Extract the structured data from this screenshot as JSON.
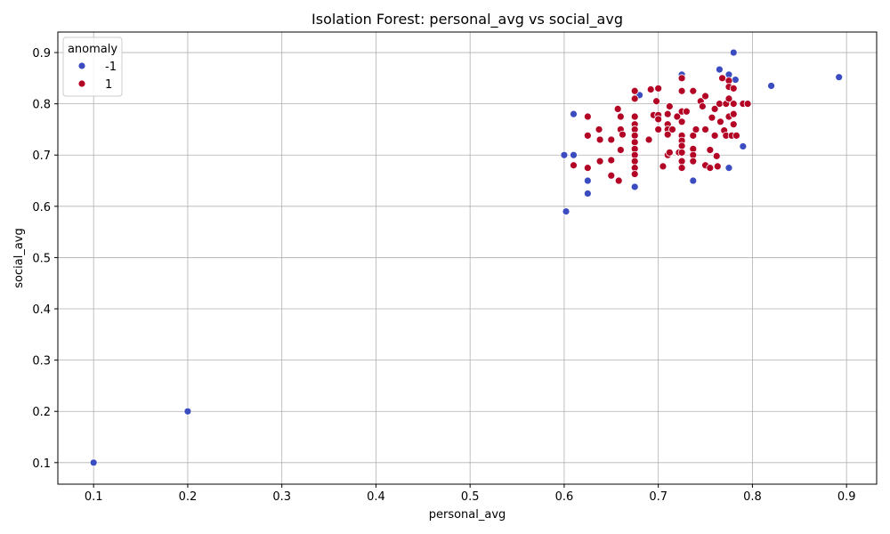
{
  "chart_data": {
    "type": "scatter",
    "title": "Isolation Forest: personal_avg vs social_avg",
    "xlabel": "personal_avg",
    "ylabel": "social_avg",
    "xlim": [
      0.062,
      0.932
    ],
    "ylim": [
      0.058,
      0.94
    ],
    "xticks": [
      "0.1",
      "0.2",
      "0.3",
      "0.4",
      "0.5",
      "0.6",
      "0.7",
      "0.8",
      "0.9"
    ],
    "yticks": [
      "0.1",
      "0.2",
      "0.3",
      "0.4",
      "0.5",
      "0.6",
      "0.7",
      "0.8",
      "0.9"
    ],
    "grid": true,
    "legend": {
      "title": "anomaly",
      "placement": "top-left",
      "entries": [
        "-1",
        "1"
      ]
    },
    "colors": {
      "-1": "#3b4cc0",
      "1": "#b40426"
    },
    "series": [
      {
        "name": "-1",
        "color": "#3b4cc0",
        "points": [
          [
            0.1,
            0.1
          ],
          [
            0.2,
            0.2
          ],
          [
            0.6,
            0.7
          ],
          [
            0.602,
            0.59
          ],
          [
            0.61,
            0.7
          ],
          [
            0.61,
            0.78
          ],
          [
            0.625,
            0.65
          ],
          [
            0.625,
            0.625
          ],
          [
            0.675,
            0.638
          ],
          [
            0.68,
            0.817
          ],
          [
            0.725,
            0.857
          ],
          [
            0.737,
            0.65
          ],
          [
            0.765,
            0.867
          ],
          [
            0.775,
            0.857
          ],
          [
            0.775,
            0.675
          ],
          [
            0.78,
            0.9
          ],
          [
            0.782,
            0.847
          ],
          [
            0.79,
            0.717
          ],
          [
            0.82,
            0.835
          ],
          [
            0.892,
            0.852
          ]
        ]
      },
      {
        "name": "1",
        "color": "#b40426",
        "points": [
          [
            0.61,
            0.68
          ],
          [
            0.625,
            0.775
          ],
          [
            0.625,
            0.738
          ],
          [
            0.625,
            0.675
          ],
          [
            0.637,
            0.75
          ],
          [
            0.638,
            0.73
          ],
          [
            0.638,
            0.688
          ],
          [
            0.65,
            0.73
          ],
          [
            0.65,
            0.69
          ],
          [
            0.65,
            0.66
          ],
          [
            0.657,
            0.79
          ],
          [
            0.66,
            0.775
          ],
          [
            0.66,
            0.75
          ],
          [
            0.66,
            0.71
          ],
          [
            0.658,
            0.65
          ],
          [
            0.662,
            0.74
          ],
          [
            0.675,
            0.825
          ],
          [
            0.675,
            0.81
          ],
          [
            0.675,
            0.775
          ],
          [
            0.675,
            0.76
          ],
          [
            0.675,
            0.75
          ],
          [
            0.675,
            0.738
          ],
          [
            0.675,
            0.725
          ],
          [
            0.675,
            0.712
          ],
          [
            0.675,
            0.7
          ],
          [
            0.675,
            0.688
          ],
          [
            0.675,
            0.675
          ],
          [
            0.675,
            0.663
          ],
          [
            0.69,
            0.73
          ],
          [
            0.692,
            0.828
          ],
          [
            0.695,
            0.778
          ],
          [
            0.698,
            0.805
          ],
          [
            0.7,
            0.83
          ],
          [
            0.7,
            0.778
          ],
          [
            0.7,
            0.77
          ],
          [
            0.7,
            0.75
          ],
          [
            0.705,
            0.678
          ],
          [
            0.71,
            0.78
          ],
          [
            0.71,
            0.76
          ],
          [
            0.71,
            0.75
          ],
          [
            0.71,
            0.74
          ],
          [
            0.71,
            0.7
          ],
          [
            0.712,
            0.795
          ],
          [
            0.712,
            0.705
          ],
          [
            0.715,
            0.75
          ],
          [
            0.72,
            0.775
          ],
          [
            0.722,
            0.705
          ],
          [
            0.725,
            0.85
          ],
          [
            0.725,
            0.825
          ],
          [
            0.725,
            0.785
          ],
          [
            0.725,
            0.765
          ],
          [
            0.725,
            0.738
          ],
          [
            0.725,
            0.728
          ],
          [
            0.725,
            0.718
          ],
          [
            0.725,
            0.705
          ],
          [
            0.725,
            0.688
          ],
          [
            0.725,
            0.675
          ],
          [
            0.73,
            0.785
          ],
          [
            0.737,
            0.825
          ],
          [
            0.737,
            0.738
          ],
          [
            0.737,
            0.712
          ],
          [
            0.737,
            0.7
          ],
          [
            0.737,
            0.688
          ],
          [
            0.74,
            0.75
          ],
          [
            0.745,
            0.805
          ],
          [
            0.747,
            0.795
          ],
          [
            0.75,
            0.815
          ],
          [
            0.75,
            0.75
          ],
          [
            0.75,
            0.68
          ],
          [
            0.755,
            0.675
          ],
          [
            0.755,
            0.71
          ],
          [
            0.757,
            0.773
          ],
          [
            0.76,
            0.79
          ],
          [
            0.76,
            0.738
          ],
          [
            0.762,
            0.698
          ],
          [
            0.763,
            0.678
          ],
          [
            0.765,
            0.8
          ],
          [
            0.766,
            0.765
          ],
          [
            0.768,
            0.85
          ],
          [
            0.77,
            0.748
          ],
          [
            0.772,
            0.8
          ],
          [
            0.772,
            0.738
          ],
          [
            0.775,
            0.845
          ],
          [
            0.775,
            0.833
          ],
          [
            0.775,
            0.81
          ],
          [
            0.775,
            0.775
          ],
          [
            0.778,
            0.738
          ],
          [
            0.78,
            0.83
          ],
          [
            0.78,
            0.8
          ],
          [
            0.78,
            0.78
          ],
          [
            0.78,
            0.76
          ],
          [
            0.783,
            0.738
          ],
          [
            0.79,
            0.8
          ],
          [
            0.795,
            0.8
          ]
        ]
      }
    ]
  }
}
